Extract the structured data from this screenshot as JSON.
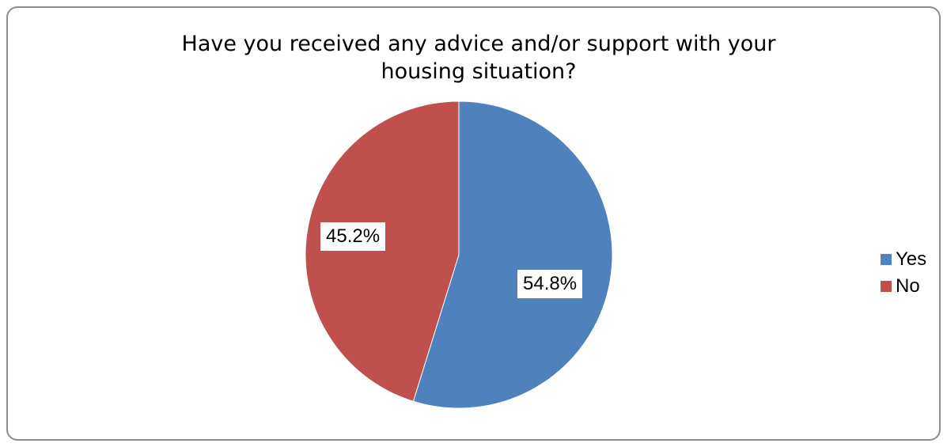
{
  "chart_data": {
    "type": "pie",
    "title_lines": [
      "Have you received any advice and/or support with your",
      "housing situation?"
    ],
    "categories": [
      "Yes",
      "No"
    ],
    "values": [
      54.8,
      45.2
    ],
    "data_labels": [
      "54.8%",
      "45.2%"
    ],
    "colors": [
      "#4f81bd",
      "#c0504d"
    ],
    "legend_position": "right"
  }
}
